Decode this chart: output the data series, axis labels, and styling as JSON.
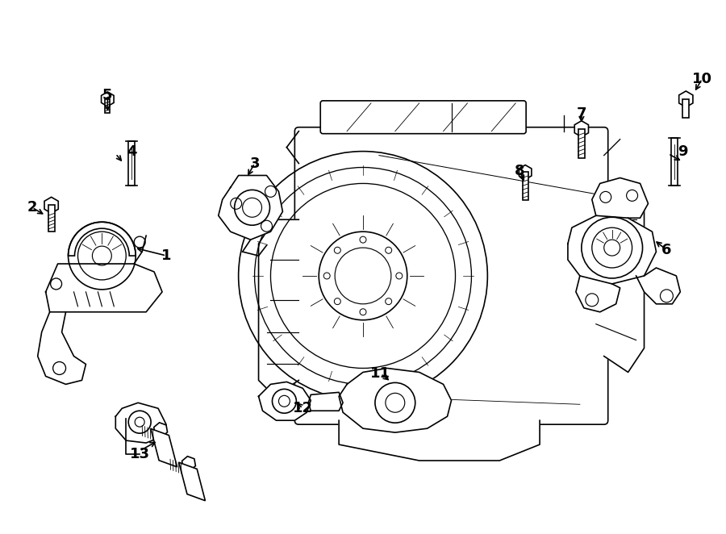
{
  "bg_color": "#ffffff",
  "line_color": "#000000",
  "line_width": 1.2,
  "fig_width": 9.0,
  "fig_height": 6.62
}
